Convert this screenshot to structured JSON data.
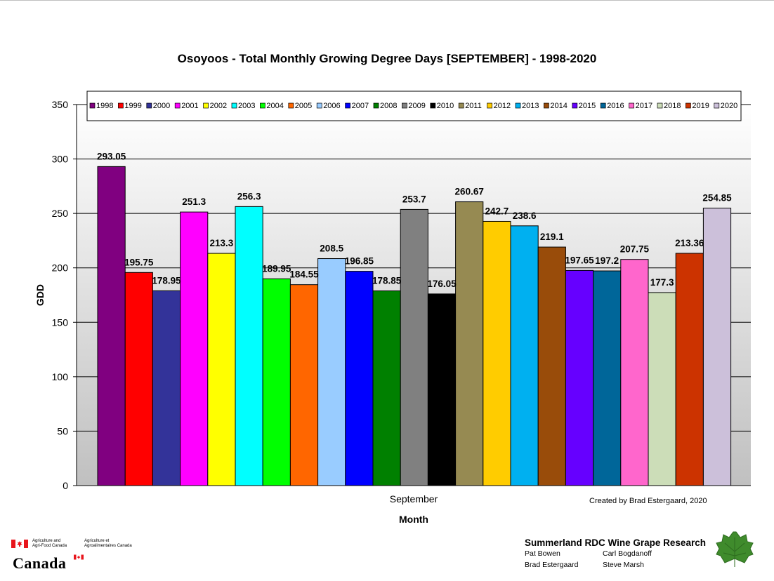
{
  "chart_data": {
    "type": "bar",
    "title": "Osoyoos - Total Monthly Growing Degree Days [SEPTEMBER] - 1998-2020",
    "xlabel": "Month",
    "ylabel": "GDD",
    "categories": [
      "September"
    ],
    "ylim": [
      0,
      350
    ],
    "yticks": [
      0,
      50,
      100,
      150,
      200,
      250,
      300,
      350
    ],
    "ytick_labels": [
      "0",
      "50",
      "100",
      "150",
      "200",
      "250",
      "300",
      "350"
    ],
    "grid": true,
    "legend_position": "top",
    "series": [
      {
        "name": "1998",
        "values": [
          293.05
        ],
        "label": "293.05",
        "color": "#800080"
      },
      {
        "name": "1999",
        "values": [
          195.75
        ],
        "label": "195.75",
        "color": "#FF0000"
      },
      {
        "name": "2000",
        "values": [
          178.95
        ],
        "label": "178.95",
        "color": "#333399"
      },
      {
        "name": "2001",
        "values": [
          251.3
        ],
        "label": "251.3",
        "color": "#FF00FF"
      },
      {
        "name": "2002",
        "values": [
          213.3
        ],
        "label": "213.3",
        "color": "#FFFF00"
      },
      {
        "name": "2003",
        "values": [
          256.3
        ],
        "label": "256.3",
        "color": "#00FFFF"
      },
      {
        "name": "2004",
        "values": [
          189.95
        ],
        "label": "189.95",
        "color": "#00FF00"
      },
      {
        "name": "2005",
        "values": [
          184.55
        ],
        "label": "184.55",
        "color": "#FF6600"
      },
      {
        "name": "2006",
        "values": [
          208.5
        ],
        "label": "208.5",
        "color": "#99CCFF"
      },
      {
        "name": "2007",
        "values": [
          196.85
        ],
        "label": "196.85",
        "color": "#0000FF"
      },
      {
        "name": "2008",
        "values": [
          178.85
        ],
        "label": "178.85",
        "color": "#008000"
      },
      {
        "name": "2009",
        "values": [
          253.7
        ],
        "label": "253.7",
        "color": "#808080"
      },
      {
        "name": "2010",
        "values": [
          176.05
        ],
        "label": "176.05",
        "color": "#000000"
      },
      {
        "name": "2011",
        "values": [
          260.67
        ],
        "label": "260.67",
        "color": "#968A52"
      },
      {
        "name": "2012",
        "values": [
          242.7
        ],
        "label": "242.7",
        "color": "#FFCC00"
      },
      {
        "name": "2013",
        "values": [
          238.6
        ],
        "label": "238.6",
        "color": "#00B0F0"
      },
      {
        "name": "2014",
        "values": [
          219.1
        ],
        "label": "219.1",
        "color": "#994C0A"
      },
      {
        "name": "2015",
        "values": [
          197.65
        ],
        "label": "197.65",
        "color": "#6600FF"
      },
      {
        "name": "2016",
        "values": [
          197.2
        ],
        "label": "197.2",
        "color": "#006699"
      },
      {
        "name": "2017",
        "values": [
          207.75
        ],
        "label": "207.75",
        "color": "#FF66CC"
      },
      {
        "name": "2018",
        "values": [
          177.3
        ],
        "label": "177.3",
        "color": "#CCDDB8"
      },
      {
        "name": "2019",
        "values": [
          213.36
        ],
        "label": "213.36",
        "color": "#CC3300"
      },
      {
        "name": "2020",
        "values": [
          254.85
        ],
        "label": "254.85",
        "color": "#CCC0DA"
      }
    ]
  },
  "credit": "Created by Brad Estergaard, 2020",
  "aafc": {
    "en_line1": "Agriculture and",
    "en_line2": "Agri-Food Canada",
    "fr_line1": "Agriculture et",
    "fr_line2": "Agroalimentaires Canada",
    "wordmark": "Canada"
  },
  "research": {
    "title": "Summerland RDC Wine Grape Research",
    "names": [
      "Pat Bowen",
      "Carl Bogdanoff",
      "Brad Estergaard",
      "Steve Marsh"
    ]
  },
  "colors": {
    "plot_gradient_top": "#ffffff",
    "plot_gradient_bottom": "#c0c0c0",
    "canada_red": "#e8151c",
    "leaf_green": "#3f8b2c"
  }
}
